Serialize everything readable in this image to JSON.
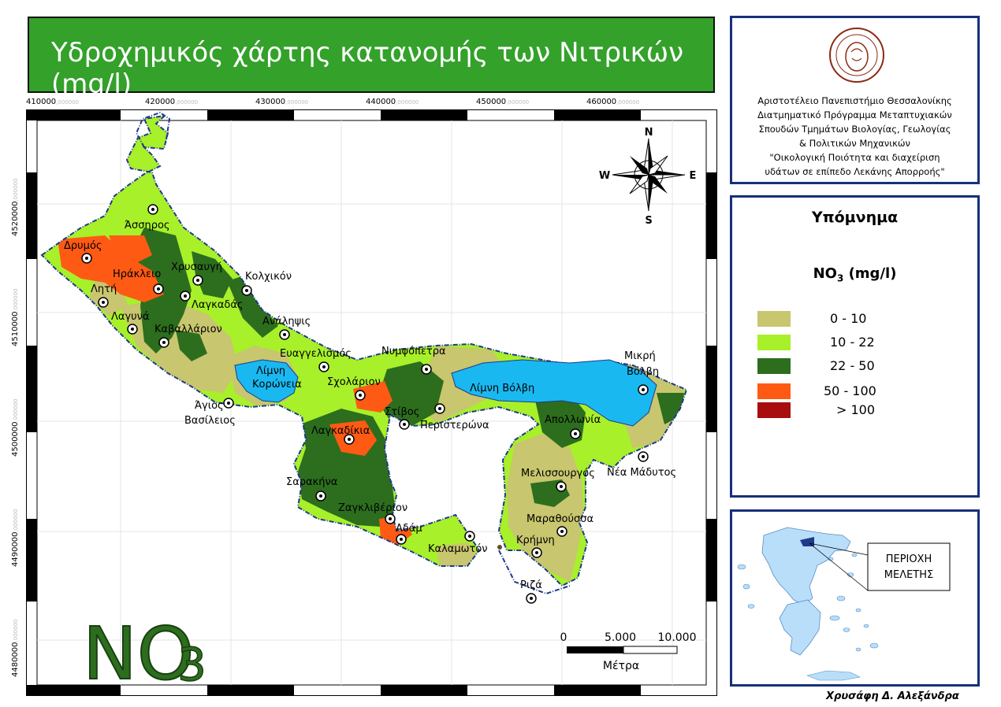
{
  "title": "Υδροχημικός χάρτης κατανομής των Νιτρικών (mg/l)",
  "x_coords": [
    {
      "main": "410000",
      "frac": ",000000"
    },
    {
      "main": "420000",
      "frac": ",000000"
    },
    {
      "main": "430000",
      "frac": ",000000"
    },
    {
      "main": "440000",
      "frac": ",000000"
    },
    {
      "main": "450000",
      "frac": ",000000"
    },
    {
      "main": "460000",
      "frac": ",000000"
    }
  ],
  "y_coords": [
    {
      "main": "4520000",
      "frac": ",000000"
    },
    {
      "main": "4510000",
      "frac": ",000000"
    },
    {
      "main": "4500000",
      "frac": ",000000"
    },
    {
      "main": "4490000",
      "frac": ",000000"
    },
    {
      "main": "4480000",
      "frac": ",000000"
    }
  ],
  "university": {
    "line1": "Αριστοτέλειο Πανεπιστήμιο Θεσσαλονίκης",
    "line2": "Διατμηματικό  Πρόγραμμα Μεταπτυχιακών",
    "line3": "Σπουδών Τμημάτων Βιολογίας, Γεωλογίας",
    "line4": "& Πολιτικών Μηχανικών",
    "line5": "\"Οικολογική Ποιότητα και διαχείριση",
    "line6": "υδάτων σε επίπεδο Λεκάνης Απορροής\""
  },
  "legend": {
    "title": "Υπόμνημα",
    "subtitle_main": "NO",
    "subtitle_sub": "3",
    "subtitle_unit": " (mg/l)",
    "items": [
      {
        "label": "0 - 10",
        "color": "#c8c66e"
      },
      {
        "label": "10 - 22",
        "color": "#a8f02a"
      },
      {
        "label": "22 - 50",
        "color": "#2c6e1e"
      },
      {
        "label": "50 - 100",
        "color": "#ff5a14"
      },
      {
        "label": "> 100",
        "color": "#a80e0e"
      }
    ]
  },
  "compass": {
    "n": "N",
    "s": "S",
    "e": "E",
    "w": "W"
  },
  "scale": {
    "t0": "0",
    "t1": "5.000",
    "t2": "10.000",
    "unit": "Μέτρα"
  },
  "big_label": {
    "main": "NO",
    "sub": "3"
  },
  "inset_label": {
    "line1": "ΠΕΡΙΟΧΗ",
    "line2": "ΜΕΛΕΤΗΣ"
  },
  "author": "Χρυσάφη Δ. Αλεξάνδρα",
  "places": {
    "assiros": "Άσσηρος",
    "dromos": "Δρυμός",
    "irakleio": "Ηράκλειο",
    "chrysavgi": "Χρυσαυγή",
    "kolchiko": "Κολχικόν",
    "liti": "Λητή",
    "lagkadas": "Λαγκαδάς",
    "lagyna": "Λαγυνά",
    "kavallario": "Καβαλλάριον",
    "analipsi": "Ανάληψις",
    "evangelismos": "Ευαγγελισμός",
    "nymfopetra": "Νυμφόπετρα",
    "mikri": "Μικρή",
    "volvi_v": "Βόλβη",
    "limni_koroneia_1": "Λίμνη",
    "limni_koroneia_2": "Κορώνεια",
    "limni_volvi": "Λίμνη Βόλβη",
    "scholari": "Σχολάριον",
    "stivos": "Στίβος",
    "peristerona": "Περιστερώνα",
    "agios_1": "Άγιος",
    "agios_2": "Βασίλειος",
    "lagkadikia": "Λαγκαδίκια",
    "apollonia": "Απολλωνία",
    "nea_madytos": "Νέα Μάδυτος",
    "melissourgos": "Μελισσουργός",
    "sarakina": "Σαρακήνα",
    "zagkliveri": "Ζαγκλιβέριον",
    "adam": "Αδάμ",
    "marathousa": "Μαραθούσσα",
    "kalamoto": "Καλαμωτόν",
    "krimni": "Κρήμνη",
    "riza": "Ριζά"
  }
}
